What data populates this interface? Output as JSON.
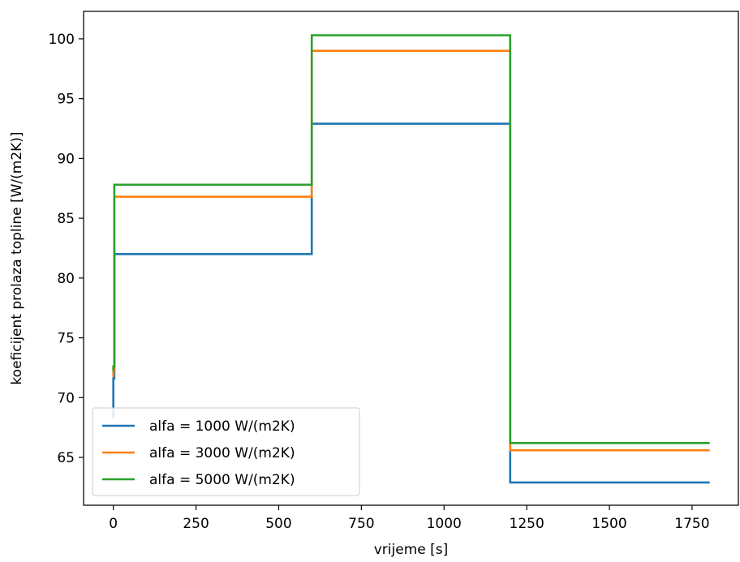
{
  "chart_data": {
    "type": "line",
    "title": "",
    "xlabel": "vrijeme [s]",
    "ylabel": "koeficijent prolaza topline [W/(m2K)]",
    "xlim": [
      -90,
      1890
    ],
    "ylim": [
      61,
      102.3
    ],
    "x_ticks": [
      0,
      250,
      500,
      750,
      1000,
      1250,
      1500,
      1750
    ],
    "y_ticks": [
      65,
      70,
      75,
      80,
      85,
      90,
      95,
      100
    ],
    "grid": false,
    "legend_position": "lower-left",
    "series": [
      {
        "name": "alfa = 1000 W/(m2K)",
        "color": "#1f77b4",
        "x": [
          0,
          0,
          3,
          3,
          600,
          600,
          1200,
          1200,
          1800
        ],
        "y": [
          68.4,
          71.6,
          71.6,
          82.0,
          82.0,
          92.9,
          92.9,
          62.9,
          62.9
        ]
      },
      {
        "name": "alfa = 3000 W/(m2K)",
        "color": "#ff7f0e",
        "x": [
          0,
          0,
          3,
          3,
          600,
          600,
          1200,
          1200,
          1800
        ],
        "y": [
          71.8,
          72.3,
          72.3,
          86.8,
          86.8,
          99.0,
          99.0,
          65.6,
          65.6
        ]
      },
      {
        "name": "alfa = 5000 W/(m2K)",
        "color": "#2ca02c",
        "x": [
          0,
          0,
          3,
          3,
          600,
          600,
          1200,
          1200,
          1800
        ],
        "y": [
          72.3,
          72.6,
          72.6,
          87.8,
          87.8,
          100.3,
          100.3,
          66.2,
          66.2
        ]
      }
    ]
  }
}
